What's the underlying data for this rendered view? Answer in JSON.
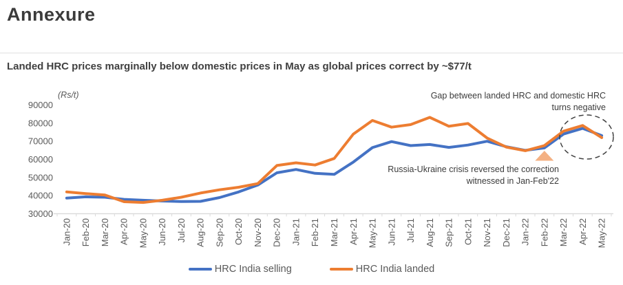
{
  "title": "Annexure",
  "subtitle": "Landed HRC prices marginally below domestic prices in May as global prices correct by ~$77/t",
  "chart_data": {
    "type": "line",
    "unit_label": "(Rs/t)",
    "title": "Landed HRC prices marginally below domestic prices in May as global prices correct by ~$77/t",
    "xlabel": "",
    "ylabel": "(Rs/t)",
    "ylim": [
      30000,
      90000
    ],
    "ytick_step": 10000,
    "grid": false,
    "legend_position": "bottom-center",
    "axis_color": "#D9D9D9",
    "tick_label_color": "#595959",
    "categories": [
      "Jan-20",
      "Feb-20",
      "Mar-20",
      "Apr-20",
      "May-20",
      "Jun-20",
      "Jul-20",
      "Aug-20",
      "Sep-20",
      "Oct-20",
      "Nov-20",
      "Dec-20",
      "Jan-21",
      "Feb-21",
      "Mar-21",
      "Apr-21",
      "May-21",
      "Jun-21",
      "Jul-21",
      "Aug-21",
      "Sep-21",
      "Oct-21",
      "Nov-21",
      "Dec-21",
      "Jan-22",
      "Feb-22",
      "Mar-22",
      "Apr-22",
      "May-22"
    ],
    "series": [
      {
        "name": "HRC India selling",
        "color": "#4472C4",
        "values": [
          38600,
          39300,
          39100,
          37900,
          37400,
          37000,
          36700,
          36800,
          38900,
          42000,
          45800,
          52600,
          54400,
          52300,
          51700,
          58500,
          66500,
          69800,
          67600,
          68200,
          66600,
          67900,
          70000,
          67000,
          65000,
          66300,
          74000,
          77100,
          73100
        ]
      },
      {
        "name": "HRC India landed",
        "color": "#ED7D31",
        "values": [
          42000,
          41100,
          40300,
          36600,
          36200,
          37400,
          39100,
          41400,
          43200,
          44600,
          46600,
          56600,
          58100,
          56900,
          60500,
          74000,
          81500,
          77800,
          79200,
          83200,
          78300,
          79800,
          71800,
          66800,
          64800,
          67600,
          75600,
          78700,
          72000
        ]
      }
    ],
    "annotations": {
      "gap": {
        "line1": "Gap between landed HRC and domestic HRC",
        "line2": "turns negative",
        "highlight": "dashed ellipse around Mar-22 to May-22"
      },
      "crisis": {
        "line1": "Russia-Ukraine crisis reversed the correction",
        "line2": "witnessed in Jan-Feb'22",
        "marker": "triangle at Feb-22",
        "marker_color": "#F4B183"
      }
    }
  }
}
